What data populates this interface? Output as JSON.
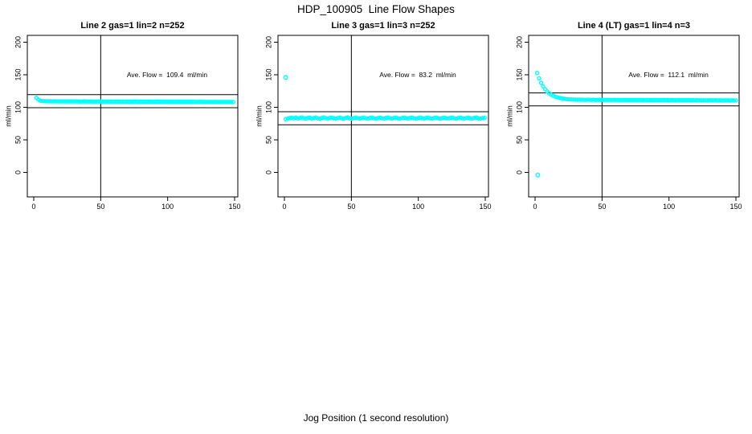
{
  "chart_data": {
    "type": "scatter",
    "title": "HDP_100905  Line Flow Shapes",
    "xlabel": "Jog Position (1 second resolution)",
    "ylabel": "ml/min",
    "x_ticks": [
      "0",
      "50",
      "100",
      "150"
    ],
    "x_tick_values": [
      0,
      50,
      100,
      150
    ],
    "y_ticks": [
      "0",
      "50",
      "100",
      "150",
      "200"
    ],
    "y_tick_values": [
      0,
      50,
      100,
      150,
      200
    ],
    "xlim": [
      0,
      150
    ],
    "ylim": [
      -38,
      212
    ],
    "grid": false,
    "point_color": "#00FFFF",
    "axis_color": "#000000",
    "background_color": "#FFFFFF",
    "vline_x": 50,
    "panels": [
      {
        "title": "Line 2 gas=1 lin=2 n=252",
        "annotation": "Ave. Flow =  109.4  ml/min",
        "ave_flow": 109.4,
        "n": 252,
        "hlines": [
          119.4,
          99.4
        ],
        "series": {
          "x_start": 2,
          "x_step": 1.5,
          "y": [
            114.5,
            111.8,
            110.2,
            109.7,
            109.5,
            109.4,
            109.3,
            109.3,
            109.2,
            109.3,
            109.2,
            109.1,
            109.2,
            109.1,
            109.2,
            109.1,
            109.0,
            109.1,
            109.1,
            109.0,
            109.1,
            109.0,
            108.9,
            109.0,
            109.1,
            109.0,
            108.9,
            109.0,
            108.9,
            108.8,
            108.9,
            109.0,
            108.9,
            108.8,
            108.9,
            108.8,
            108.9,
            108.8,
            108.7,
            108.8,
            108.9,
            108.8,
            108.7,
            108.8,
            108.7,
            108.8,
            108.7,
            108.6,
            108.7,
            108.8,
            108.7,
            108.6,
            108.7,
            108.6,
            108.7,
            108.6,
            108.7,
            108.6,
            108.5,
            108.6,
            108.7,
            108.6,
            108.5,
            108.6,
            108.5,
            108.6,
            108.5,
            108.6,
            108.5,
            108.4,
            108.5,
            108.6,
            108.5,
            108.4,
            108.5,
            108.4,
            108.5,
            108.4,
            108.5,
            108.4,
            108.3,
            108.4,
            108.5,
            108.4,
            108.3,
            108.4,
            108.3,
            108.4,
            108.3,
            108.4,
            108.3,
            108.2,
            108.3,
            108.4,
            108.3,
            108.2,
            108.3,
            108.2,
            108.3
          ]
        },
        "outliers": []
      },
      {
        "title": "Line 3 gas=1 lin=3 n=252",
        "annotation": "Ave. Flow =  83.2  ml/min",
        "ave_flow": 83.2,
        "n": 252,
        "hlines": [
          93.2,
          73.2
        ],
        "series": {
          "x_start": 1,
          "x_step": 1.5,
          "y": [
            81.8,
            83.0,
            83.6,
            83.8,
            83.1,
            84.2,
            82.9,
            83.6,
            84.4,
            83.2,
            82.6,
            83.9,
            84.1,
            82.8,
            83.5,
            84.3,
            83.0,
            82.5,
            83.7,
            84.5,
            83.3,
            82.9,
            83.8,
            84.0,
            83.2,
            82.7,
            83.6,
            84.2,
            83.1,
            82.8,
            83.9,
            84.4,
            83.0,
            82.6,
            83.5,
            84.1,
            83.3,
            82.9,
            83.7,
            84.3,
            83.1,
            82.7,
            83.8,
            84.2,
            83.0,
            82.8,
            83.6,
            84.0,
            83.2,
            82.6,
            83.9,
            84.3,
            83.1,
            82.9,
            83.7,
            84.1,
            83.0,
            82.7,
            83.5,
            84.2,
            83.3,
            82.8,
            83.8,
            84.0,
            83.1,
            82.6,
            83.6,
            84.3,
            83.2,
            82.9,
            83.7,
            84.1,
            83.0,
            82.8,
            83.9,
            84.2,
            83.1,
            82.7,
            83.5,
            84.0,
            83.3,
            82.9,
            83.8,
            84.1,
            83.0,
            82.6,
            83.7,
            84.2,
            83.2,
            82.8,
            83.6,
            84.0,
            83.1,
            82.9,
            83.8,
            84.3,
            83.0,
            82.7,
            83.5,
            83.9
          ]
        },
        "outliers": [
          [
            1,
            146
          ]
        ]
      },
      {
        "title": "Line 4 (LT) gas=1 lin=4 n=3",
        "annotation": "Ave. Flow =  112.1  ml/min",
        "ave_flow": 112.1,
        "n": 3,
        "hlines": [
          122.1,
          102.1
        ],
        "series": {
          "x_start": 1.5,
          "x_step": 1.5,
          "y": [
            152.8,
            144.5,
            137.5,
            132.1,
            127.8,
            124.4,
            121.7,
            119.5,
            117.8,
            116.5,
            115.4,
            114.6,
            113.9,
            113.4,
            112.9,
            112.6,
            112.3,
            112.1,
            112.0,
            111.8,
            111.7,
            111.8,
            111.6,
            111.7,
            111.5,
            111.7,
            111.6,
            111.5,
            111.6,
            111.4,
            111.5,
            111.6,
            111.4,
            111.5,
            111.3,
            111.5,
            111.4,
            111.3,
            111.4,
            111.5,
            111.3,
            111.4,
            111.2,
            111.4,
            111.3,
            111.2,
            111.3,
            111.4,
            111.2,
            111.3,
            111.1,
            111.3,
            111.2,
            111.1,
            111.2,
            111.3,
            111.1,
            111.2,
            111.0,
            111.2,
            111.1,
            111.0,
            111.1,
            111.2,
            111.0,
            111.1,
            110.9,
            111.1,
            111.0,
            110.9,
            111.0,
            111.1,
            110.9,
            111.0,
            110.8,
            111.0,
            110.9,
            110.8,
            110.9,
            111.0,
            110.8,
            110.9,
            110.7,
            110.9,
            110.8,
            110.7,
            110.8,
            110.9,
            110.7,
            110.8,
            110.6,
            110.8,
            110.7,
            110.6,
            110.7,
            110.8,
            110.6,
            110.7,
            110.5,
            110.7
          ]
        },
        "outliers": [
          [
            2,
            -4
          ]
        ]
      }
    ]
  }
}
